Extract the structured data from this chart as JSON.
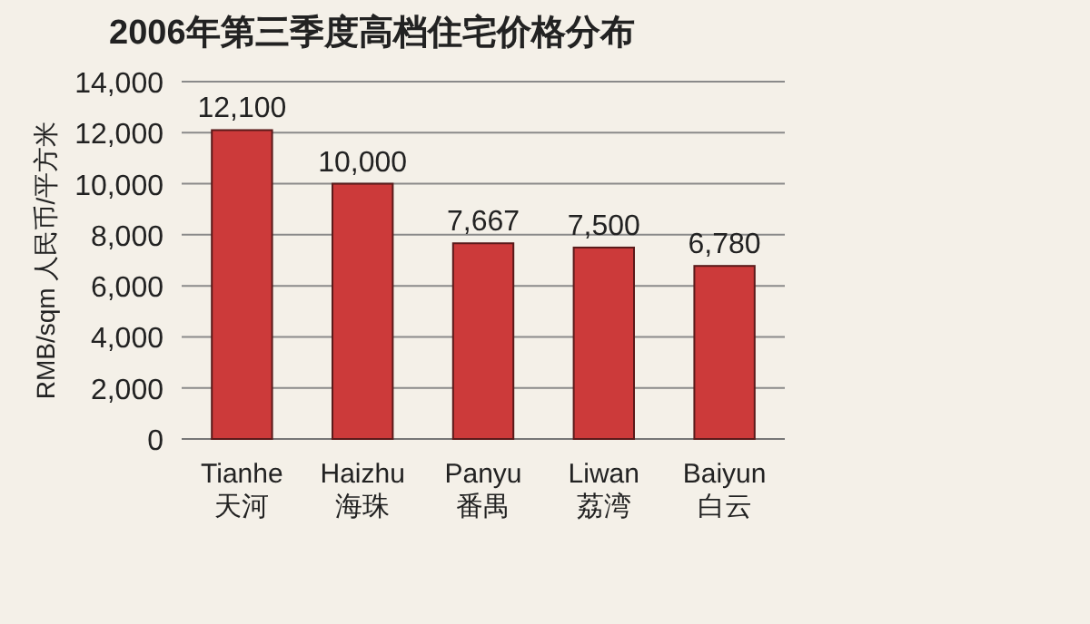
{
  "chart_data": {
    "type": "bar",
    "title": "2006年第三季度高档住宅价格分布",
    "ylabel": "RMB/sqm 人民币/平方米",
    "categories": [
      "Tianhe\n天河",
      "Haizhu\n海珠",
      "Panyu\n番禺",
      "Liwan\n荔湾",
      "Baiyun\n白云"
    ],
    "values": [
      12100,
      10000,
      7667,
      7500,
      6780
    ],
    "color": "#cc3a3a",
    "ylim": [
      0,
      14000
    ],
    "yticks": [
      {
        "value": 0,
        "label": "0"
      },
      {
        "value": 2000,
        "label": "2,000"
      },
      {
        "value": 4000,
        "label": "4,000"
      },
      {
        "value": 6000,
        "label": "6,000"
      },
      {
        "value": 8000,
        "label": "8,000"
      },
      {
        "value": 10000,
        "label": "10,000"
      },
      {
        "value": 12000,
        "label": "12,000"
      },
      {
        "value": 14000,
        "label": "14,000"
      }
    ],
    "grid": "y",
    "value_labels": [
      "12,100",
      "10,000",
      "7,667",
      "7,500",
      "6,780"
    ]
  }
}
